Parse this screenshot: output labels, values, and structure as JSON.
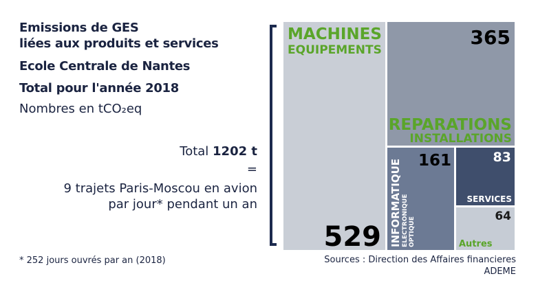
{
  "header": {
    "line1": "Emissions de GES",
    "line2": "liées aux produits et services",
    "line3": "Ecole Centrale de Nantes",
    "line4": "Total pour l'année 2018",
    "unit": "Nombres en tCO₂eq"
  },
  "total": {
    "prefix": "Total ",
    "value": "1202 t",
    "equals": "=",
    "equiv_line1": "9 trajets Paris-Moscou en avion",
    "equiv_line2": "par jour* pendant un an"
  },
  "footnote": "* 252 jours ouvrés par an (2018)",
  "sources": {
    "line1": "Sources : Direction des Affaires financieres",
    "line2": "ADEME"
  },
  "colors": {
    "green": "#5aa52a",
    "navy": "#1c2a4e",
    "machines": "#c9ced6",
    "reparations": "#8f98a8",
    "informatique": "#6c7a94",
    "services": "#3f4e6c",
    "autres": "#c6ccd5"
  },
  "chart_data": {
    "type": "treemap",
    "unit": "tCO₂eq",
    "items": [
      {
        "label": "MACHINES EQUIPEMENTS",
        "label_lines": [
          "MACHINES",
          "EQUIPEMENTS"
        ],
        "value": 529
      },
      {
        "label": "REPARATIONS INSTALLATIONS",
        "label_lines": [
          "REPARATIONS",
          "INSTALLATIONS"
        ],
        "value": 365
      },
      {
        "label": "INFORMATIQUE ELECTRONIQUE OPTIQUE",
        "label_lines": [
          "INFORMATIQUE",
          "ELECTRONIQUE",
          "OPTIQUE"
        ],
        "value": 161
      },
      {
        "label": "SERVICES",
        "label_lines": [
          "SERVICES"
        ],
        "value": 83
      },
      {
        "label": "Autres",
        "label_lines": [
          "Autres"
        ],
        "value": 64
      }
    ]
  }
}
